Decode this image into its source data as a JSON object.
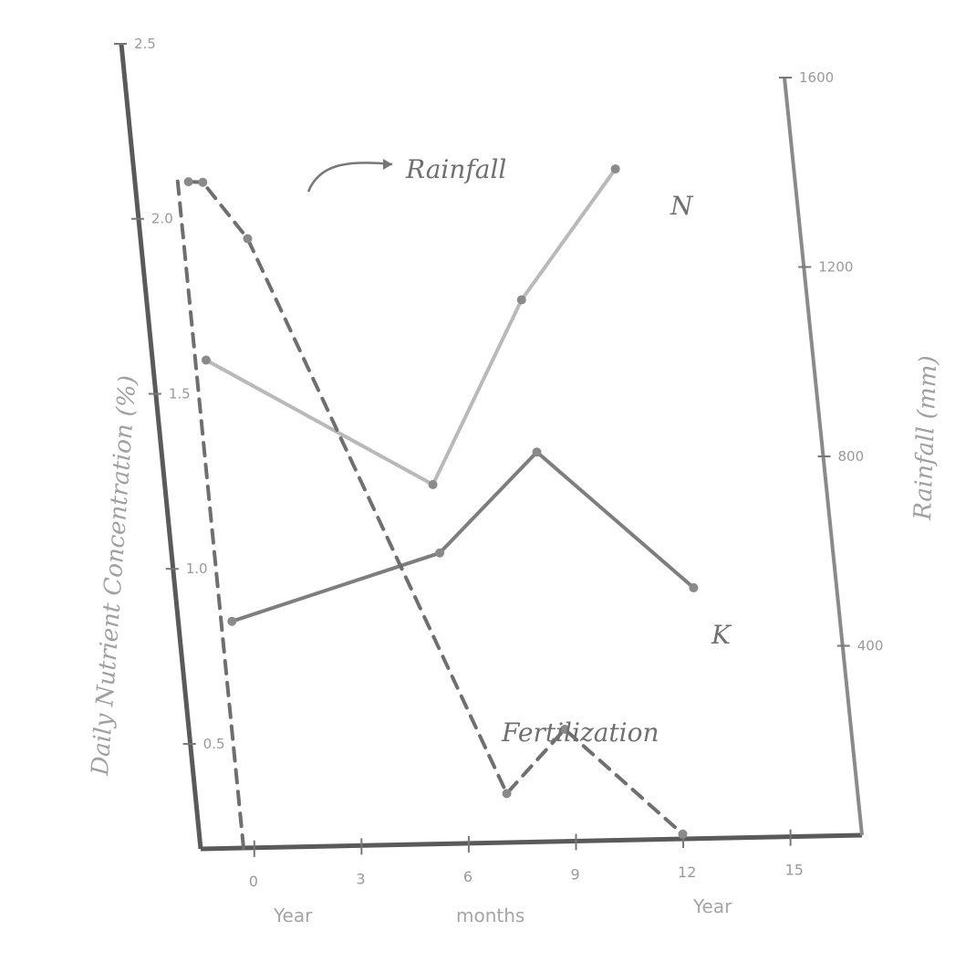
{
  "chart_data": {
    "type": "line",
    "x": [
      0,
      3,
      6,
      9,
      12,
      15
    ],
    "x_tick_labels": [
      "0",
      "3",
      "6",
      "9",
      "12",
      "15"
    ],
    "xlabel": "months",
    "xlabel_prefix": "Year",
    "xlabel_suffix": "Year",
    "y_left": {
      "label": "Daily Nutrient Concentration (%)",
      "ticks": [
        0.5,
        1.0,
        1.5,
        2.0,
        2.5
      ],
      "tick_labels": [
        "0.5",
        "1.0",
        "1.5",
        "2.0",
        "2.5"
      ],
      "ylim": [
        0.2,
        2.5
      ]
    },
    "y_right": {
      "label": "Rainfall (mm)",
      "ticks": [
        400,
        800,
        1200,
        1600
      ],
      "tick_labels": [
        "400",
        "800",
        "1200",
        "1600"
      ],
      "ylim": [
        0,
        1600
      ]
    },
    "series": [
      {
        "name": "N",
        "axis": "left",
        "style": "solid-light",
        "x": [
          0,
          6,
          9,
          12
        ],
        "y": [
          1.6,
          1.25,
          1.8,
          2.2
        ]
      },
      {
        "name": "K",
        "axis": "left",
        "style": "solid",
        "x": [
          0,
          6,
          9,
          13
        ],
        "y": [
          0.85,
          1.05,
          1.35,
          0.95
        ]
      },
      {
        "name": "Rainfall",
        "axis": "right",
        "style": "dashed",
        "x": [
          0,
          0.4,
          1.5,
          7.2,
          9,
          12
        ],
        "y": [
          1330,
          1330,
          1220,
          100,
          230,
          10
        ]
      },
      {
        "name": "Fertilization",
        "axis": "right",
        "style": "dashed",
        "x": [
          -0.3,
          -0.3
        ],
        "y": [
          0,
          1330
        ]
      }
    ],
    "annotations": [
      "Rainfall",
      "N",
      "K",
      "Fertilization"
    ]
  }
}
